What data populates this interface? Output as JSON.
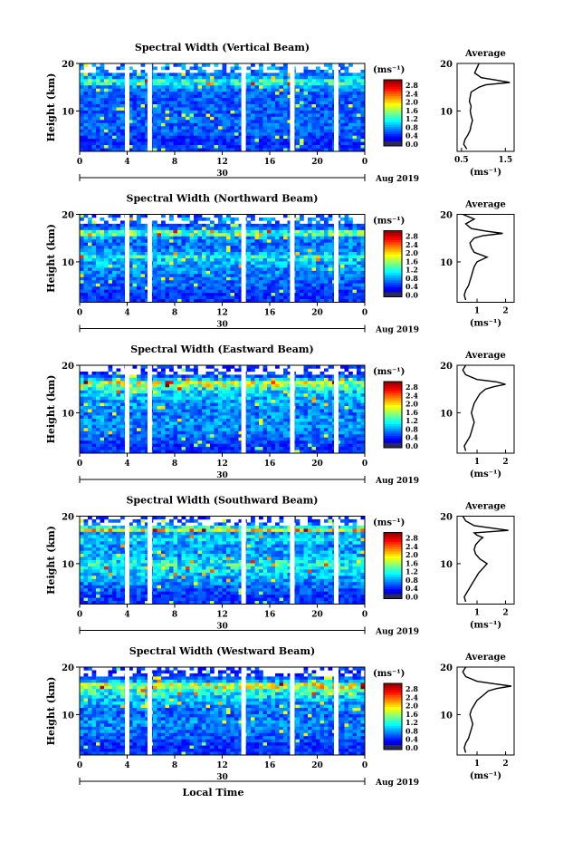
{
  "figure": {
    "xlabel_bottom": "Local Time",
    "date_label": "Aug 2019",
    "day_label": "30",
    "colorbar_unit": "(ms⁻¹)",
    "colorbar_ticks": [
      "0.0",
      "0.4",
      "0.8",
      "1.2",
      "1.6",
      "2.0",
      "2.4",
      "2.8"
    ],
    "avg_title": "Average",
    "avg_xlabel": "(ms⁻¹)",
    "ylabel": "Height (km)"
  },
  "chart_data": [
    {
      "type": "heatmap",
      "title": "Spectral Width (Vertical Beam)",
      "xlabel": "Local Time",
      "ylabel": "Height (km)",
      "x_ticks": [
        "0",
        "4",
        "8",
        "12",
        "16",
        "20",
        "0"
      ],
      "y_ticks": [
        "10",
        "20"
      ],
      "xlim": [
        0,
        24
      ],
      "ylim": [
        1.5,
        20
      ],
      "colorbar": {
        "unit": "(ms⁻¹)",
        "range": [
          0.0,
          2.8
        ],
        "ticks": [
          "0.0",
          "0.4",
          "0.8",
          "1.2",
          "1.6",
          "2.0",
          "2.4",
          "2.8"
        ],
        "colormap": "jet"
      },
      "gaps_hours": [
        4.0,
        5.9,
        13.8,
        17.9,
        21.6
      ],
      "average_profile": {
        "title": "Average",
        "xlabel": "(ms⁻¹)",
        "x_ticks": [
          "0.5",
          "1.5"
        ],
        "xlim": [
          0.4,
          1.7
        ],
        "heights": [
          2,
          3,
          4,
          5,
          6,
          7,
          8,
          9,
          10,
          11,
          12,
          13,
          14,
          15,
          15.5,
          16,
          16.5,
          17,
          18,
          19,
          20
        ],
        "values": [
          0.62,
          0.55,
          0.58,
          0.65,
          0.7,
          0.72,
          0.75,
          0.72,
          0.7,
          0.72,
          0.68,
          0.7,
          0.72,
          0.9,
          1.05,
          1.6,
          1.3,
          0.95,
          0.8,
          0.85,
          0.9
        ]
      }
    },
    {
      "type": "heatmap",
      "title": "Spectral Width (Northward Beam)",
      "xlabel": "Local Time",
      "ylabel": "Height (km)",
      "x_ticks": [
        "0",
        "4",
        "8",
        "12",
        "16",
        "20",
        "0"
      ],
      "y_ticks": [
        "10",
        "20"
      ],
      "xlim": [
        0,
        24
      ],
      "ylim": [
        1.5,
        20
      ],
      "colorbar": {
        "unit": "(ms⁻¹)",
        "range": [
          0.0,
          2.8
        ],
        "ticks": [
          "0.0",
          "0.4",
          "0.8",
          "1.2",
          "1.6",
          "2.0",
          "2.4",
          "2.8"
        ],
        "colormap": "jet"
      },
      "gaps_hours": [
        4.0,
        5.9,
        13.8,
        17.9,
        21.6
      ],
      "average_profile": {
        "title": "Average",
        "xlabel": "(ms⁻¹)",
        "x_ticks": [
          "1",
          "2"
        ],
        "xlim": [
          0.3,
          2.3
        ],
        "heights": [
          2,
          3,
          4,
          5,
          6,
          7,
          8,
          9,
          10,
          11,
          12,
          13,
          14,
          15,
          15.5,
          16,
          16.5,
          17,
          18,
          19,
          20
        ],
        "values": [
          0.6,
          0.55,
          0.6,
          0.7,
          0.75,
          0.8,
          0.85,
          0.9,
          1.0,
          1.35,
          0.9,
          0.8,
          0.75,
          0.9,
          1.2,
          1.9,
          1.3,
          0.8,
          0.6,
          0.9,
          0.5
        ]
      }
    },
    {
      "type": "heatmap",
      "title": "Spectral Width (Eastward Beam)",
      "xlabel": "Local Time",
      "ylabel": "Height (km)",
      "x_ticks": [
        "0",
        "4",
        "8",
        "12",
        "16",
        "20",
        "0"
      ],
      "y_ticks": [
        "10",
        "20"
      ],
      "xlim": [
        0,
        24
      ],
      "ylim": [
        1.5,
        20
      ],
      "colorbar": {
        "unit": "(ms⁻¹)",
        "range": [
          0.0,
          2.8
        ],
        "ticks": [
          "0.0",
          "0.4",
          "0.8",
          "1.2",
          "1.6",
          "2.0",
          "2.4",
          "2.8"
        ],
        "colormap": "jet"
      },
      "gaps_hours": [
        4.0,
        5.9,
        13.8,
        17.9,
        21.6
      ],
      "average_profile": {
        "title": "Average",
        "xlabel": "(ms⁻¹)",
        "x_ticks": [
          "1",
          "2"
        ],
        "xlim": [
          0.3,
          2.3
        ],
        "heights": [
          2,
          3,
          4,
          5,
          6,
          7,
          8,
          9,
          10,
          11,
          12,
          13,
          14,
          15,
          15.5,
          16,
          16.5,
          17,
          18,
          19,
          20
        ],
        "values": [
          0.6,
          0.55,
          0.65,
          0.75,
          0.8,
          0.85,
          0.9,
          0.85,
          0.8,
          0.85,
          0.9,
          1.0,
          1.1,
          1.3,
          1.6,
          2.0,
          1.7,
          1.0,
          0.6,
          0.5,
          0.6
        ]
      }
    },
    {
      "type": "heatmap",
      "title": "Spectral Width (Southward Beam)",
      "xlabel": "Local Time",
      "ylabel": "Height (km)",
      "x_ticks": [
        "0",
        "4",
        "8",
        "12",
        "16",
        "20",
        "0"
      ],
      "y_ticks": [
        "10",
        "20"
      ],
      "xlim": [
        0,
        24
      ],
      "ylim": [
        1.5,
        20
      ],
      "colorbar": {
        "unit": "(ms⁻¹)",
        "range": [
          0.0,
          2.8
        ],
        "ticks": [
          "0.0",
          "0.4",
          "0.8",
          "1.2",
          "1.6",
          "2.0",
          "2.4",
          "2.8"
        ],
        "colormap": "jet"
      },
      "gaps_hours": [
        4.0,
        5.9,
        13.8,
        17.9,
        21.6
      ],
      "average_profile": {
        "title": "Average",
        "xlabel": "(ms⁻¹)",
        "x_ticks": [
          "1",
          "2"
        ],
        "xlim": [
          0.3,
          2.3
        ],
        "heights": [
          2,
          3,
          4,
          5,
          6,
          7,
          8,
          9,
          10,
          11,
          12,
          13,
          14,
          15,
          15.5,
          16,
          16.5,
          17,
          18,
          19,
          20
        ],
        "values": [
          0.6,
          0.55,
          0.65,
          0.75,
          0.85,
          0.95,
          1.05,
          1.2,
          1.35,
          1.1,
          0.95,
          0.9,
          0.95,
          1.1,
          1.2,
          1.0,
          0.9,
          2.1,
          0.9,
          0.6,
          0.5
        ]
      }
    },
    {
      "type": "heatmap",
      "title": "Spectral Width (Westward Beam)",
      "xlabel": "Local Time",
      "ylabel": "Height (km)",
      "x_ticks": [
        "0",
        "4",
        "8",
        "12",
        "16",
        "20",
        "0"
      ],
      "y_ticks": [
        "10",
        "20"
      ],
      "xlim": [
        0,
        24
      ],
      "ylim": [
        1.5,
        20
      ],
      "colorbar": {
        "unit": "(ms⁻¹)",
        "range": [
          0.0,
          2.8
        ],
        "ticks": [
          "0.0",
          "0.4",
          "0.8",
          "1.2",
          "1.6",
          "2.0",
          "2.4",
          "2.8"
        ],
        "colormap": "jet"
      },
      "gaps_hours": [
        4.0,
        5.9,
        13.8,
        17.9,
        21.6
      ],
      "average_profile": {
        "title": "Average",
        "xlabel": "(ms⁻¹)",
        "x_ticks": [
          "1",
          "2"
        ],
        "xlim": [
          0.3,
          2.3
        ],
        "heights": [
          2,
          3,
          4,
          5,
          6,
          7,
          8,
          9,
          10,
          11,
          12,
          13,
          14,
          15,
          15.5,
          16,
          16.5,
          17,
          18,
          19,
          20
        ],
        "values": [
          0.6,
          0.55,
          0.6,
          0.7,
          0.75,
          0.8,
          0.85,
          0.8,
          0.75,
          0.8,
          0.9,
          1.0,
          1.2,
          1.4,
          1.7,
          2.2,
          1.6,
          1.0,
          0.6,
          0.5,
          0.6
        ]
      }
    }
  ]
}
